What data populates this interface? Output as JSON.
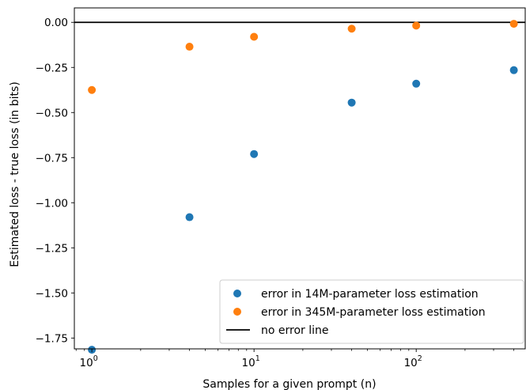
{
  "chart_data": {
    "type": "scatter",
    "xlabel": "Samples for a given prompt (n)",
    "ylabel": "Estimated loss - true loss (in bits)",
    "xscale": "log",
    "xlim": [
      0.78,
      470
    ],
    "ylim": [
      -1.81,
      0.08
    ],
    "grid": false,
    "legend_position": "bottom-right",
    "x_ticks": [
      {
        "base": "10",
        "exp": "0",
        "value": 1
      },
      {
        "base": "10",
        "exp": "1",
        "value": 10
      },
      {
        "base": "10",
        "exp": "2",
        "value": 100
      }
    ],
    "y_ticks": [
      {
        "value": 0.0,
        "label": "0.00"
      },
      {
        "value": -0.25,
        "label": "−0.25"
      },
      {
        "value": -0.5,
        "label": "−0.50"
      },
      {
        "value": -0.75,
        "label": "−0.75"
      },
      {
        "value": -1.0,
        "label": "−1.00"
      },
      {
        "value": -1.25,
        "label": "−1.25"
      },
      {
        "value": -1.5,
        "label": "−1.50"
      },
      {
        "value": -1.75,
        "label": "−1.75"
      }
    ],
    "series": [
      {
        "name": "error in 14M-parameter loss estimation",
        "color": "#1f77b4",
        "x": [
          1,
          4,
          10,
          40,
          100,
          400
        ],
        "y": [
          -1.815,
          -1.08,
          -0.73,
          -0.445,
          -0.34,
          -0.265
        ]
      },
      {
        "name": "error in 345M-parameter loss estimation",
        "color": "#ff7f0e",
        "x": [
          1,
          4,
          10,
          40,
          100,
          400
        ],
        "y": [
          -0.375,
          -0.135,
          -0.08,
          -0.035,
          -0.018,
          -0.008
        ]
      }
    ],
    "reference_line": {
      "name": "no error line",
      "y": 0,
      "color": "#000000"
    }
  }
}
